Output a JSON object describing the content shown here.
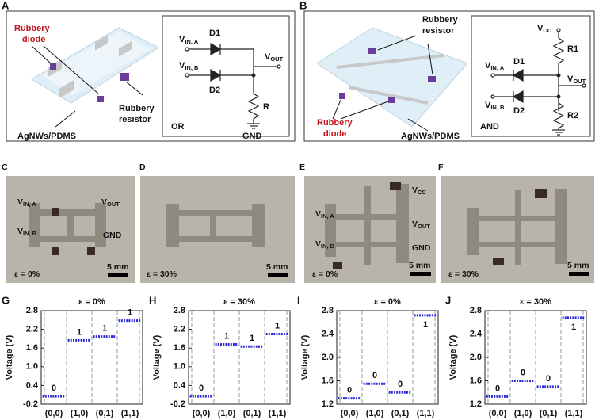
{
  "panels": {
    "A": {
      "letter": "A",
      "diode": [
        "Rubbery",
        "diode"
      ],
      "resistor": [
        "Rubbery",
        "resistor"
      ],
      "substrate": "AgNWs/PDMS",
      "vin_a": {
        "v": "V",
        "sub": "IN, A"
      },
      "vin_b": {
        "v": "V",
        "sub": "IN, B"
      },
      "vout": {
        "v": "V",
        "sub": "OUT"
      },
      "d1": "D1",
      "d2": "D2",
      "r": "R",
      "gate": "OR",
      "gnd": "GND"
    },
    "B": {
      "letter": "B",
      "resistor": [
        "Rubbery",
        "resistor"
      ],
      "diode": [
        "Rubbery",
        "diode"
      ],
      "substrate": "AgNWs/PDMS",
      "vcc": {
        "v": "V",
        "sub": "CC"
      },
      "vin_a": {
        "v": "V",
        "sub": "IN, A"
      },
      "vin_b": {
        "v": "V",
        "sub": "IN, B"
      },
      "vout": {
        "v": "V",
        "sub": "OUT"
      },
      "d1": "D1",
      "d2": "D2",
      "r1": "R1",
      "r2": "R2",
      "gate": "AND"
    },
    "C": {
      "letter": "C",
      "vin_a": {
        "v": "V",
        "sub": "IN, A"
      },
      "vout": {
        "v": "V",
        "sub": "OUT"
      },
      "vin_b": {
        "v": "V",
        "sub": "IN, B"
      },
      "gnd": "GND",
      "scale": "5 mm",
      "strain": "ε = 0%"
    },
    "D": {
      "letter": "D",
      "scale": "5 mm",
      "strain": "ε = 30%"
    },
    "E": {
      "letter": "E",
      "vcc": {
        "v": "V",
        "sub": "CC"
      },
      "vin_a": {
        "v": "V",
        "sub": "IN, A"
      },
      "vout": {
        "v": "V",
        "sub": "OUT"
      },
      "vin_b": {
        "v": "V",
        "sub": "IN, B"
      },
      "gnd": "GND",
      "scale": "5 mm",
      "strain": "ε = 0%"
    },
    "F": {
      "letter": "F",
      "scale": "5 mm",
      "strain": "ε = 30%"
    }
  },
  "chart_data": [
    {
      "type": "line",
      "panel": "G",
      "title": "ε = 0%",
      "y_label": "Voltage (V)",
      "categories": [
        "(0,0)",
        "(1,0)",
        "(0,1)",
        "(1,1)"
      ],
      "values": [
        0.05,
        1.85,
        1.97,
        2.48
      ],
      "annotations": [
        "0",
        "1",
        "1",
        "1"
      ],
      "color": "#2b2bd9",
      "ylim": [
        -0.2,
        2.8
      ],
      "yticks": [
        -0.2,
        0.4,
        {
          "value": 1,
          "label": "1.0"
        },
        1.6,
        2.2,
        2.8
      ]
    },
    {
      "type": "line",
      "panel": "H",
      "title": "ε = 30%",
      "y_label": "Voltage (V)",
      "categories": [
        "(0,0)",
        "(1,0)",
        "(0,1)",
        "(1,1)"
      ],
      "values": [
        0.05,
        1.72,
        1.65,
        2.05
      ],
      "annotations": [
        "0",
        "1",
        "1",
        "1"
      ],
      "color": "#2b2bd9",
      "ylim": [
        -0.2,
        2.8
      ],
      "yticks": [
        -0.2,
        0.4,
        {
          "value": 1,
          "label": "1.0"
        },
        1.6,
        2.2,
        2.8
      ]
    },
    {
      "type": "line",
      "panel": "I",
      "title": "ε = 0%",
      "y_label": "Voltage (V)",
      "categories": [
        "(0,0)",
        "(1,0)",
        "(0,1)",
        "(1,1)"
      ],
      "values": [
        1.3,
        1.55,
        1.4,
        2.72
      ],
      "annotations": [
        "0",
        "0",
        "0",
        "1"
      ],
      "color": "#2b2bd9",
      "ylim": [
        1.2,
        2.8
      ],
      "yticks": [
        1.2,
        1.6,
        {
          "value": 2,
          "label": "2.0"
        },
        2.4,
        2.8
      ]
    },
    {
      "type": "line",
      "panel": "J",
      "title": "ε = 30%",
      "y_label": "Voltage (V)",
      "categories": [
        "(0,0)",
        "(1,0)",
        "(0,1)",
        "(1,1)"
      ],
      "values": [
        1.33,
        1.6,
        1.5,
        2.68
      ],
      "annotations": [
        "0",
        "0",
        "0",
        "1"
      ],
      "color": "#2b2bd9",
      "ylim": [
        1.2,
        2.8
      ],
      "yticks": [
        1.2,
        1.6,
        {
          "value": 2,
          "label": "2.0"
        },
        2.4,
        2.8
      ]
    }
  ]
}
